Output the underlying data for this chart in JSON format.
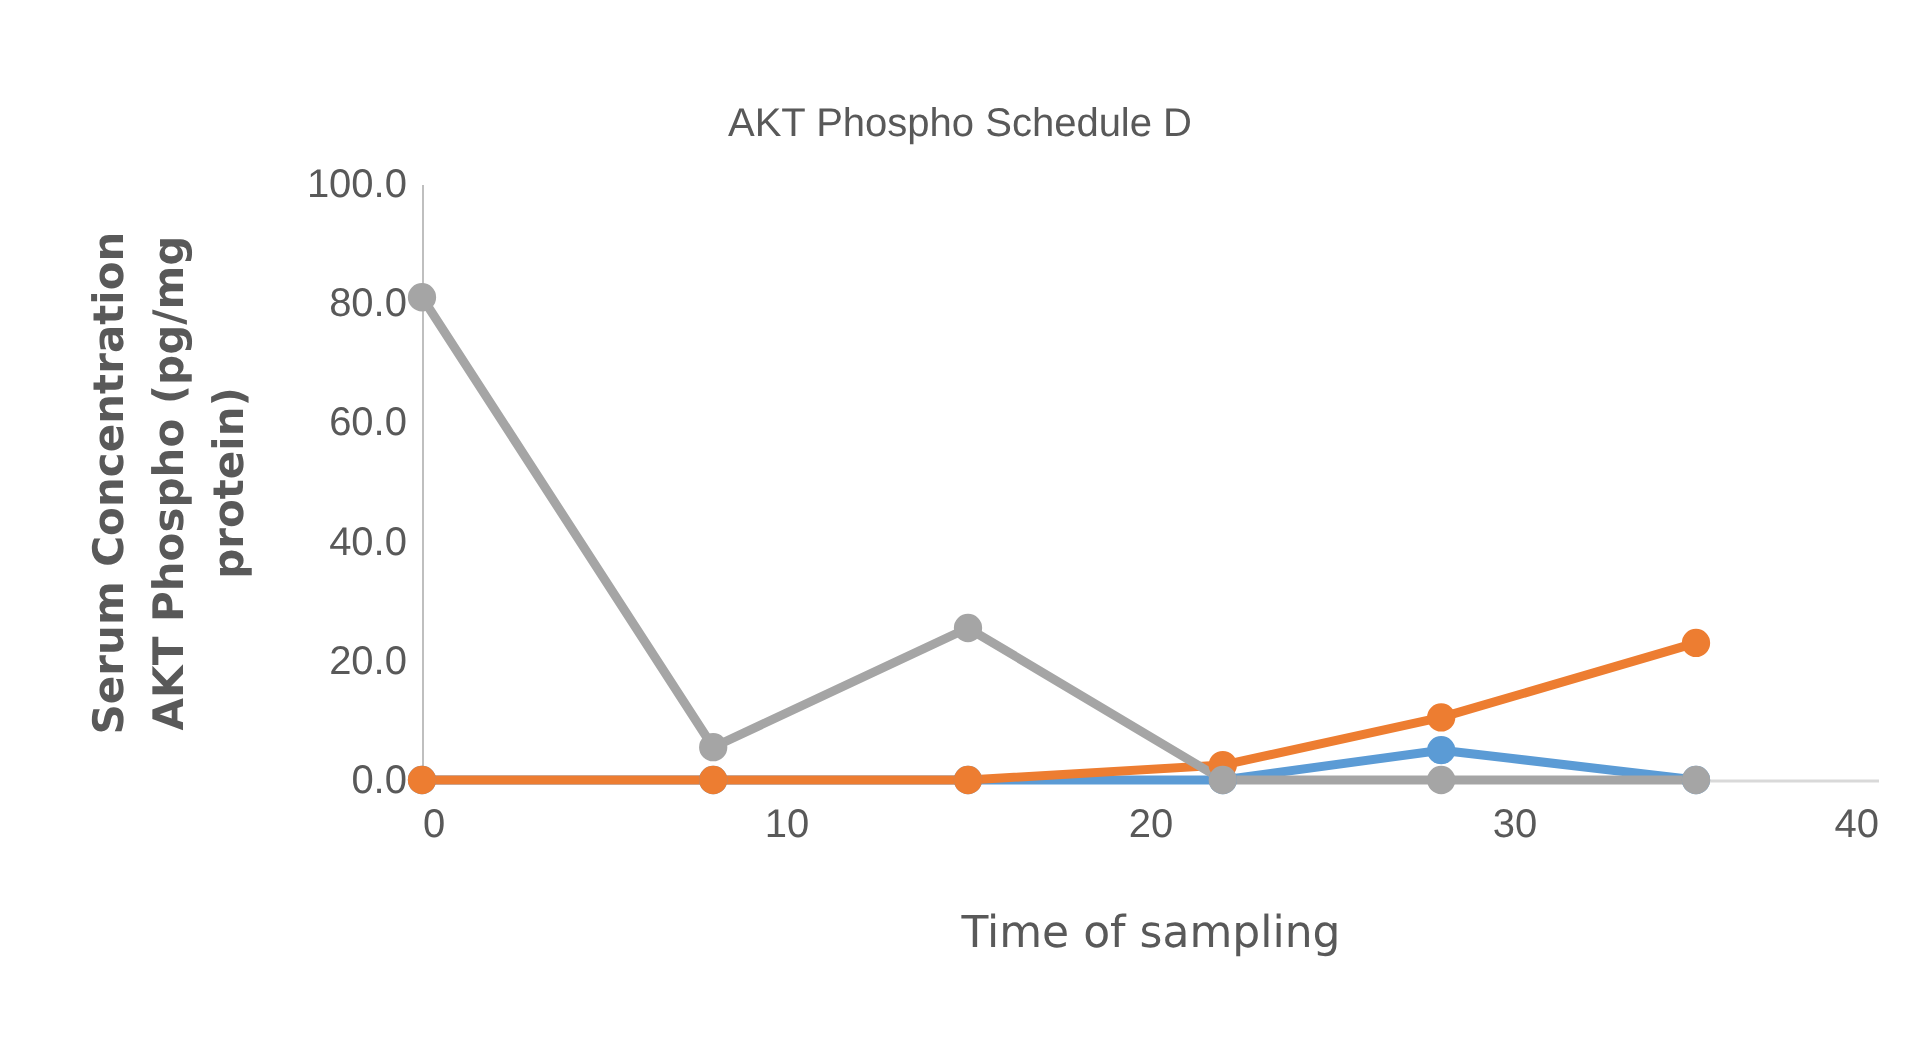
{
  "chart_data": {
    "type": "line",
    "title": "AKT Phospho Schedule D",
    "xlabel": "Time of sampling",
    "ylabel": "Serum Concentration AKT Phospho (pg/mg protein)",
    "x": [
      0,
      8,
      15,
      22,
      28,
      35
    ],
    "series": [
      {
        "color": "#5b9bd5",
        "values": [
          0,
          0,
          0,
          0,
          5,
          0
        ]
      },
      {
        "color": "#ed7d31",
        "values": [
          0,
          0,
          0,
          2.5,
          10.5,
          23
        ]
      },
      {
        "color": "#a5a5a5",
        "values": [
          81,
          5.5,
          25.5,
          0,
          0,
          0
        ]
      }
    ],
    "xlim": [
      0,
      40
    ],
    "xticks": [
      0,
      10,
      20,
      30,
      40
    ],
    "ylim": [
      0,
      100
    ],
    "yticks": [
      {
        "value": 0,
        "label": "0.0"
      },
      {
        "value": 20,
        "label": "20.0"
      },
      {
        "value": 40,
        "label": "40.0"
      },
      {
        "value": 60,
        "label": "60.0"
      },
      {
        "value": 80,
        "label": "80.0"
      },
      {
        "value": 100,
        "label": "100.0"
      }
    ],
    "grid": false,
    "legend": false,
    "marker": "circle",
    "line_style": "solid"
  }
}
